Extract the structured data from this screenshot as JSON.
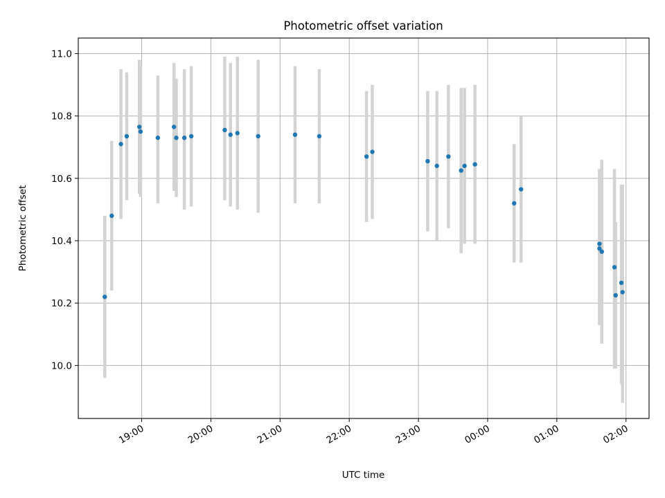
{
  "chart_data": {
    "type": "scatter",
    "title": "Photometric offset variation",
    "xlabel": "UTC time",
    "ylabel": "Photometric offset",
    "x_ticks": [
      "19:00",
      "20:00",
      "21:00",
      "22:00",
      "23:00",
      "00:00",
      "01:00",
      "02:00"
    ],
    "y_ticks": [
      "10.0",
      "10.2",
      "10.4",
      "10.6",
      "10.8",
      "11.0"
    ],
    "xlim": [
      "18:05",
      "02:20"
    ],
    "ylim": [
      9.83,
      11.05
    ],
    "grid": true,
    "series": [
      {
        "name": "",
        "color": "#1f77b4",
        "errorbar_color": "#d3d3d3",
        "points": [
          {
            "x": "18:28",
            "y": 10.22,
            "ylow": 9.96,
            "yhigh": 10.48
          },
          {
            "x": "18:34",
            "y": 10.48,
            "ylow": 10.24,
            "yhigh": 10.72
          },
          {
            "x": "18:42",
            "y": 10.71,
            "ylow": 10.47,
            "yhigh": 10.95
          },
          {
            "x": "18:47",
            "y": 10.735,
            "ylow": 10.53,
            "yhigh": 10.94
          },
          {
            "x": "18:58",
            "y": 10.765,
            "ylow": 10.55,
            "yhigh": 10.98
          },
          {
            "x": "18:59",
            "y": 10.75,
            "ylow": 10.54,
            "yhigh": 10.96
          },
          {
            "x": "19:14",
            "y": 10.73,
            "ylow": 10.52,
            "yhigh": 10.93
          },
          {
            "x": "19:28",
            "y": 10.765,
            "ylow": 10.56,
            "yhigh": 10.97
          },
          {
            "x": "19:30",
            "y": 10.73,
            "ylow": 10.54,
            "yhigh": 10.92
          },
          {
            "x": "19:37",
            "y": 10.73,
            "ylow": 10.5,
            "yhigh": 10.95
          },
          {
            "x": "19:43",
            "y": 10.735,
            "ylow": 10.51,
            "yhigh": 10.96
          },
          {
            "x": "20:12",
            "y": 10.755,
            "ylow": 10.53,
            "yhigh": 10.99
          },
          {
            "x": "20:17",
            "y": 10.74,
            "ylow": 10.51,
            "yhigh": 10.97
          },
          {
            "x": "20:23",
            "y": 10.745,
            "ylow": 10.5,
            "yhigh": 10.99
          },
          {
            "x": "20:41",
            "y": 10.735,
            "ylow": 10.49,
            "yhigh": 10.98
          },
          {
            "x": "21:13",
            "y": 10.74,
            "ylow": 10.52,
            "yhigh": 10.96
          },
          {
            "x": "21:34",
            "y": 10.735,
            "ylow": 10.52,
            "yhigh": 10.95
          },
          {
            "x": "22:15",
            "y": 10.67,
            "ylow": 10.46,
            "yhigh": 10.88
          },
          {
            "x": "22:20",
            "y": 10.685,
            "ylow": 10.47,
            "yhigh": 10.9
          },
          {
            "x": "23:08",
            "y": 10.655,
            "ylow": 10.43,
            "yhigh": 10.88
          },
          {
            "x": "23:16",
            "y": 10.64,
            "ylow": 10.4,
            "yhigh": 10.88
          },
          {
            "x": "23:26",
            "y": 10.67,
            "ylow": 10.44,
            "yhigh": 10.9
          },
          {
            "x": "23:37",
            "y": 10.625,
            "ylow": 10.36,
            "yhigh": 10.89
          },
          {
            "x": "23:40",
            "y": 10.64,
            "ylow": 10.39,
            "yhigh": 10.89
          },
          {
            "x": "23:49",
            "y": 10.645,
            "ylow": 10.39,
            "yhigh": 10.9
          },
          {
            "x": "00:23",
            "y": 10.52,
            "ylow": 10.33,
            "yhigh": 10.71
          },
          {
            "x": "00:29",
            "y": 10.565,
            "ylow": 10.33,
            "yhigh": 10.8
          },
          {
            "x": "01:37",
            "y": 10.39,
            "ylow": 10.13,
            "yhigh": 10.63
          },
          {
            "x": "01:37",
            "y": 10.375,
            "ylow": 10.13,
            "yhigh": 10.63
          },
          {
            "x": "01:39",
            "y": 10.365,
            "ylow": 10.07,
            "yhigh": 10.66
          },
          {
            "x": "01:50",
            "y": 10.315,
            "ylow": 9.99,
            "yhigh": 10.63
          },
          {
            "x": "01:51",
            "y": 10.225,
            "ylow": 9.99,
            "yhigh": 10.46
          },
          {
            "x": "01:56",
            "y": 10.265,
            "ylow": 9.94,
            "yhigh": 10.58
          },
          {
            "x": "01:57",
            "y": 10.235,
            "ylow": 9.88,
            "yhigh": 10.58
          }
        ]
      }
    ]
  }
}
